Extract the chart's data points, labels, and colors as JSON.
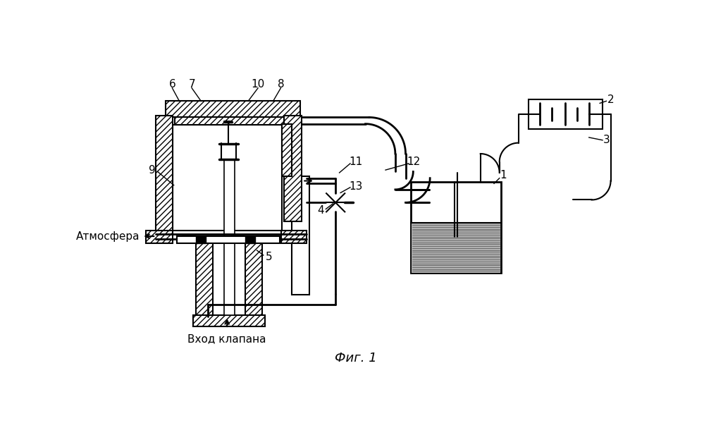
{
  "bg": "#ffffff",
  "title": "Фиг. 1",
  "atm": "Атмосфера",
  "vhod": "Вход клапана"
}
